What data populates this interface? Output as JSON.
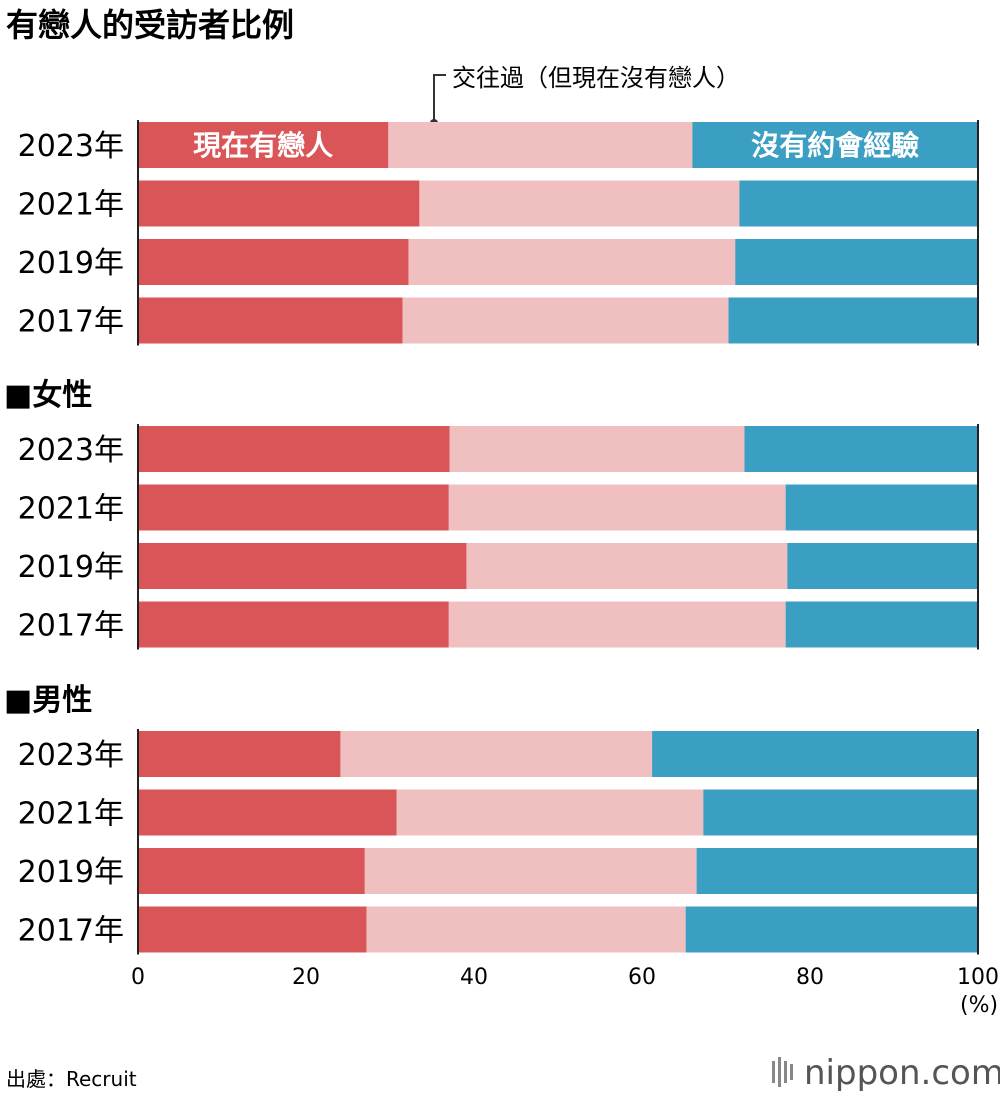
{
  "chart_data": {
    "type": "bar",
    "orientation": "horizontal",
    "stacked": true,
    "title": "有戀人的受訪者比例",
    "series": [
      {
        "name": "現在有戀人",
        "color": "#d95557"
      },
      {
        "name": "交往過（但現在沒有戀人）",
        "color": "#f0c0c0"
      },
      {
        "name": "沒有約會經驗",
        "color": "#3b9ec3"
      }
    ],
    "groups": [
      {
        "label": "",
        "rows": [
          {
            "year": "2023年",
            "values": [
              29.8,
              36.2,
              34.0
            ]
          },
          {
            "year": "2021年",
            "values": [
              33.5,
              38.1,
              28.4
            ]
          },
          {
            "year": "2019年",
            "values": [
              32.2,
              38.9,
              28.9
            ]
          },
          {
            "year": "2017年",
            "values": [
              31.5,
              38.8,
              29.7
            ]
          }
        ]
      },
      {
        "label": "■女性",
        "rows": [
          {
            "year": "2023年",
            "values": [
              37.1,
              35.1,
              27.8
            ]
          },
          {
            "year": "2021年",
            "values": [
              37.0,
              40.1,
              22.9
            ]
          },
          {
            "year": "2019年",
            "values": [
              39.1,
              38.2,
              22.7
            ]
          },
          {
            "year": "2017年",
            "values": [
              37.0,
              40.1,
              22.9
            ]
          }
        ]
      },
      {
        "label": "■男性",
        "rows": [
          {
            "year": "2023年",
            "values": [
              24.1,
              37.1,
              38.8
            ]
          },
          {
            "year": "2021年",
            "values": [
              30.8,
              36.5,
              32.7
            ]
          },
          {
            "year": "2019年",
            "values": [
              27.0,
              39.5,
              33.5
            ]
          },
          {
            "year": "2017年",
            "values": [
              27.2,
              38.0,
              34.8
            ]
          }
        ]
      }
    ],
    "x_ticks": [
      "0",
      "20",
      "40",
      "60",
      "80",
      "100"
    ],
    "xlim": [
      0,
      100
    ],
    "unit": "(%)",
    "annotation": "交往過（但現在沒有戀人）",
    "inbar_labels": [
      "現在有戀人",
      "沒有約會經驗"
    ]
  },
  "source": "出處：Recruit",
  "logo": "nippon.com"
}
